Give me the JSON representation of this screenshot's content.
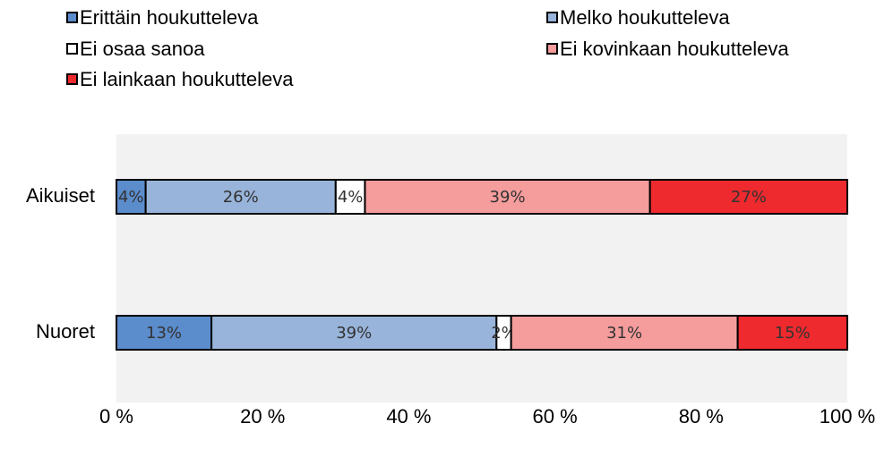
{
  "chart_data": {
    "type": "stacked-bar-horizontal",
    "categories": [
      "Aikuiset",
      "Nuoret"
    ],
    "series": [
      {
        "name": "Erittäin houkutteleva",
        "color": "#5b8ccb",
        "values": [
          4,
          13
        ],
        "value_labels": [
          "4%",
          "13%"
        ]
      },
      {
        "name": "Melko houkutteleva",
        "color": "#98b4da",
        "values": [
          26,
          39
        ],
        "value_labels": [
          "26%",
          "39%"
        ]
      },
      {
        "name": "Ei osaa sanoa",
        "color": "#ffffff",
        "values": [
          4,
          2
        ],
        "value_labels": [
          "4%",
          "2%"
        ]
      },
      {
        "name": "Ei kovinkaan houkutteleva",
        "color": "#f59c9c",
        "values": [
          39,
          31
        ],
        "value_labels": [
          "39%",
          "31%"
        ]
      },
      {
        "name": "Ei lainkaan houkutteleva",
        "color": "#ee2a2e",
        "values": [
          27,
          15
        ],
        "value_labels": [
          "27%",
          "15%"
        ]
      }
    ],
    "xlim": [
      0,
      100
    ],
    "xticks": [
      {
        "value": 0,
        "label": "0 %"
      },
      {
        "value": 20,
        "label": "20 %"
      },
      {
        "value": 40,
        "label": "40 %"
      },
      {
        "value": 60,
        "label": "60 %"
      },
      {
        "value": 80,
        "label": "80 %"
      },
      {
        "value": 100,
        "label": "100 %"
      }
    ],
    "legend": "top"
  }
}
